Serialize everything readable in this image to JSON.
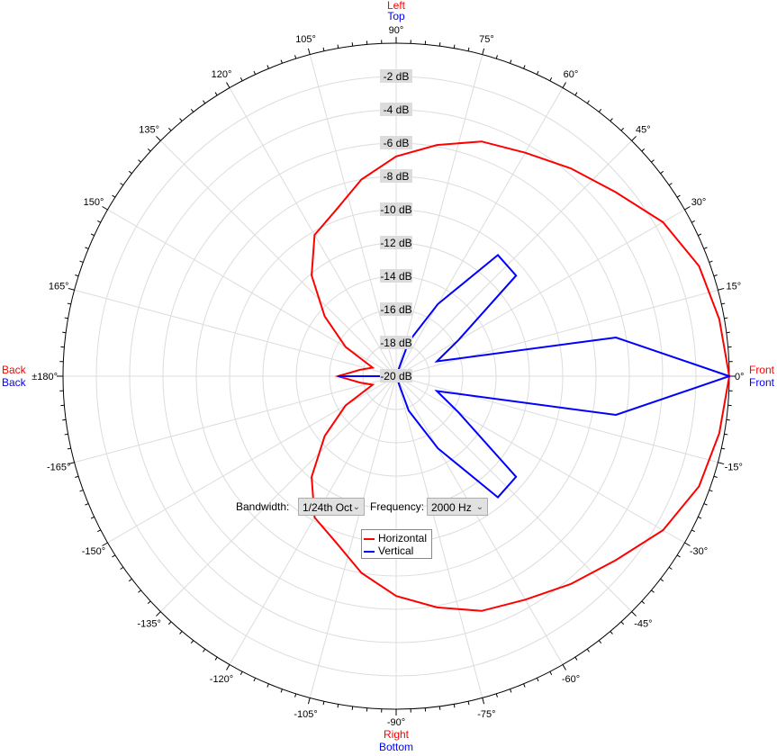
{
  "chart_data": {
    "type": "polar-line",
    "angle_unit": "deg",
    "radial_unit": "dB",
    "rlim": [
      -20,
      0
    ],
    "ring_labels": [
      "-2 dB",
      "-4 dB",
      "-6 dB",
      "-8 dB",
      "-10 dB",
      "-12 dB",
      "-14 dB",
      "-16 dB",
      "-18 dB",
      "-20 dB"
    ],
    "ring_values": [
      -2,
      -4,
      -6,
      -8,
      -10,
      -12,
      -14,
      -16,
      -18,
      -20
    ],
    "angle_ticks": [
      0,
      15,
      30,
      45,
      60,
      75,
      90,
      105,
      120,
      135,
      150,
      165,
      180,
      -165,
      -150,
      -135,
      -120,
      -105,
      -90,
      -75,
      -60,
      -45,
      -30,
      -15
    ],
    "angle_tick_labels": [
      "0°",
      "15°",
      "30°",
      "45°",
      "60°",
      "75°",
      "90°",
      "105°",
      "120°",
      "135°",
      "150°",
      "165°",
      "±180°",
      "-165°",
      "-150°",
      "-135°",
      "-120°",
      "-105°",
      "-90°",
      "-75°",
      "-60°",
      "-45°",
      "-30°",
      "-15°"
    ],
    "grid": true,
    "angles": [
      0,
      10,
      20,
      30,
      40,
      50,
      60,
      70,
      80,
      90,
      100,
      110,
      120,
      130,
      140,
      150,
      160,
      170,
      180,
      -170,
      -160,
      -150,
      -140,
      -130,
      -120,
      -110,
      -100,
      -90,
      -80,
      -70,
      -60,
      -50,
      -40,
      -30,
      -20,
      -10
    ],
    "series": [
      {
        "name": "Horizontal",
        "color": "#ff0000",
        "values": [
          0,
          -0.3,
          -0.65,
          -1.5,
          -2.8,
          -3.7,
          -4.5,
          -5.0,
          -5.9,
          -6.8,
          -8.0,
          -9.4,
          -10.2,
          -12.1,
          -14.4,
          -16.5,
          -18.5,
          -17.8,
          -16.5,
          -17.8,
          -18.5,
          -16.5,
          -14.4,
          -12.1,
          -10.2,
          -9.4,
          -8.0,
          -6.8,
          -5.9,
          -5.0,
          -4.5,
          -3.7,
          -2.8,
          -1.5,
          -0.65,
          -0.3
        ]
      },
      {
        "name": "Vertical",
        "color": "#0000ff",
        "values": [
          0,
          -6.6,
          -17.4,
          -15.7,
          -10.6,
          -10.5,
          -15,
          -17.8,
          -20,
          -20,
          -20,
          -20,
          -20,
          -20,
          -20,
          -20,
          -20,
          -20,
          -16.5,
          -20,
          -20,
          -20,
          -20,
          -20,
          -20,
          -20,
          -20,
          -20,
          -20,
          -17.8,
          -15,
          -10.5,
          -10.6,
          -15.7,
          -17.4,
          -6.6
        ]
      }
    ],
    "legend_placement": "bottom-center"
  },
  "direction_labels": {
    "top": {
      "h": "Left",
      "v": "Top"
    },
    "bottom": {
      "h": "Right",
      "v": "Bottom"
    },
    "left": {
      "h": "Back",
      "v": "Back"
    },
    "right": {
      "h": "Front",
      "v": "Front"
    }
  },
  "controls": {
    "bandwidth_label": "Bandwidth:",
    "bandwidth_value": "1/24th Oct",
    "frequency_label": "Frequency:",
    "frequency_value": "2000 Hz"
  },
  "legend": {
    "items": [
      {
        "label": "Horizontal",
        "color": "#ff0000"
      },
      {
        "label": "Vertical",
        "color": "#0000ff"
      }
    ]
  }
}
